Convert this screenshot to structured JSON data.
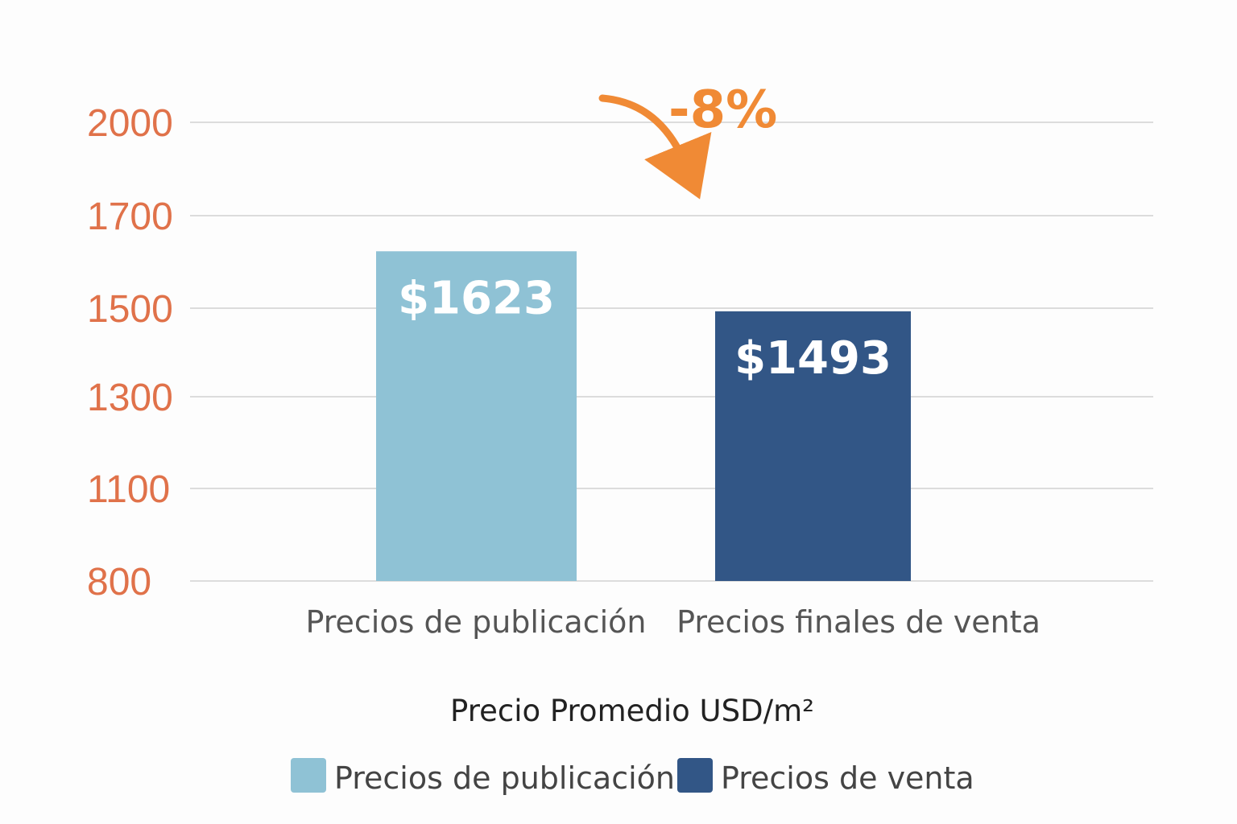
{
  "chart_data": {
    "type": "bar",
    "categories": [
      "Precios de publicación",
      "Precios finales de venta"
    ],
    "values": [
      1623,
      1493
    ],
    "data_labels": [
      "$1623",
      "$1493"
    ],
    "xlabel": "Precio Promedio USD/m²",
    "ylabel": "",
    "y_ticks": [
      800,
      1100,
      1300,
      1500,
      1700,
      2000
    ],
    "y_tick_labels": [
      "800",
      "1100",
      "1300",
      "1500",
      "1700",
      "2000"
    ],
    "grid": true,
    "legend_position": "bottom",
    "legend": [
      {
        "label": "Precios de publicación",
        "color": "#8fc2d5"
      },
      {
        "label": "Precios de venta",
        "color": "#325686"
      }
    ],
    "annotation": {
      "text": "-8%",
      "color": "#f08a35"
    },
    "colors": {
      "tick_label": "#e0724a",
      "grid": "#dcdcdc",
      "category_label": "#555555",
      "axis_title": "#222222"
    }
  }
}
